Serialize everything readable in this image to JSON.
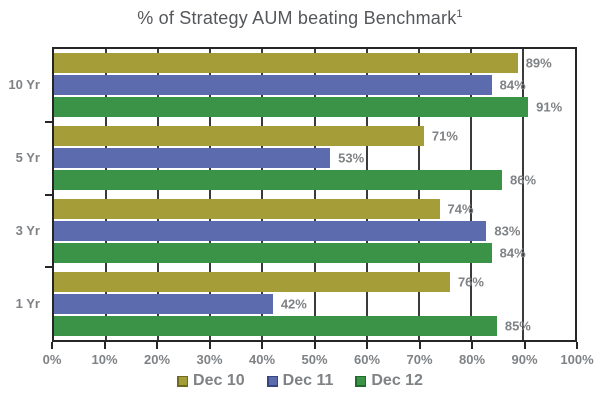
{
  "header": {
    "title": "% of Strategy AUM beating Benchmark",
    "footnote_marker": "1"
  },
  "colors": {
    "series_dec10": "#A59D37",
    "series_dec11": "#5C6BAE",
    "series_dec12": "#3B9347",
    "series_dec10_edge": "#6F6A22",
    "series_dec11_edge": "#39467E",
    "series_dec12_edge": "#226B2E",
    "axis_text": "#7F8285",
    "title_text": "#55575B",
    "grid": "#3A3A3A",
    "border": "#262626",
    "background": "#FFFFFF"
  },
  "chart_data": {
    "type": "bar",
    "orientation": "horizontal",
    "title": "% of Strategy AUM beating Benchmark¹",
    "categories": [
      "10 Yr",
      "5 Yr",
      "3 Yr",
      "1 Yr"
    ],
    "series": [
      {
        "name": "Dec 10",
        "color_key": "series_dec10",
        "edge_color_key": "series_dec10_edge",
        "values": [
          89,
          71,
          74,
          76
        ]
      },
      {
        "name": "Dec 11",
        "color_key": "series_dec11",
        "edge_color_key": "series_dec11_edge",
        "values": [
          84,
          53,
          83,
          42
        ]
      },
      {
        "name": "Dec 12",
        "color_key": "series_dec12",
        "edge_color_key": "series_dec12_edge",
        "values": [
          91,
          86,
          84,
          85
        ]
      }
    ],
    "data_labels": true,
    "value_suffix": "%",
    "xlabel": "",
    "ylabel": "",
    "xlim": [
      0,
      100
    ],
    "x_tick_labels": [
      "0%",
      "10%",
      "20%",
      "30%",
      "40%",
      "50%",
      "60%",
      "70%",
      "80%",
      "90%",
      "100%"
    ],
    "gridlines_percent": [
      10,
      20,
      30,
      40,
      50,
      60,
      70,
      80,
      90
    ],
    "grid": true,
    "legend_position": "bottom",
    "legend_labels": [
      "Dec 10",
      "Dec 11",
      "Dec 12"
    ]
  }
}
